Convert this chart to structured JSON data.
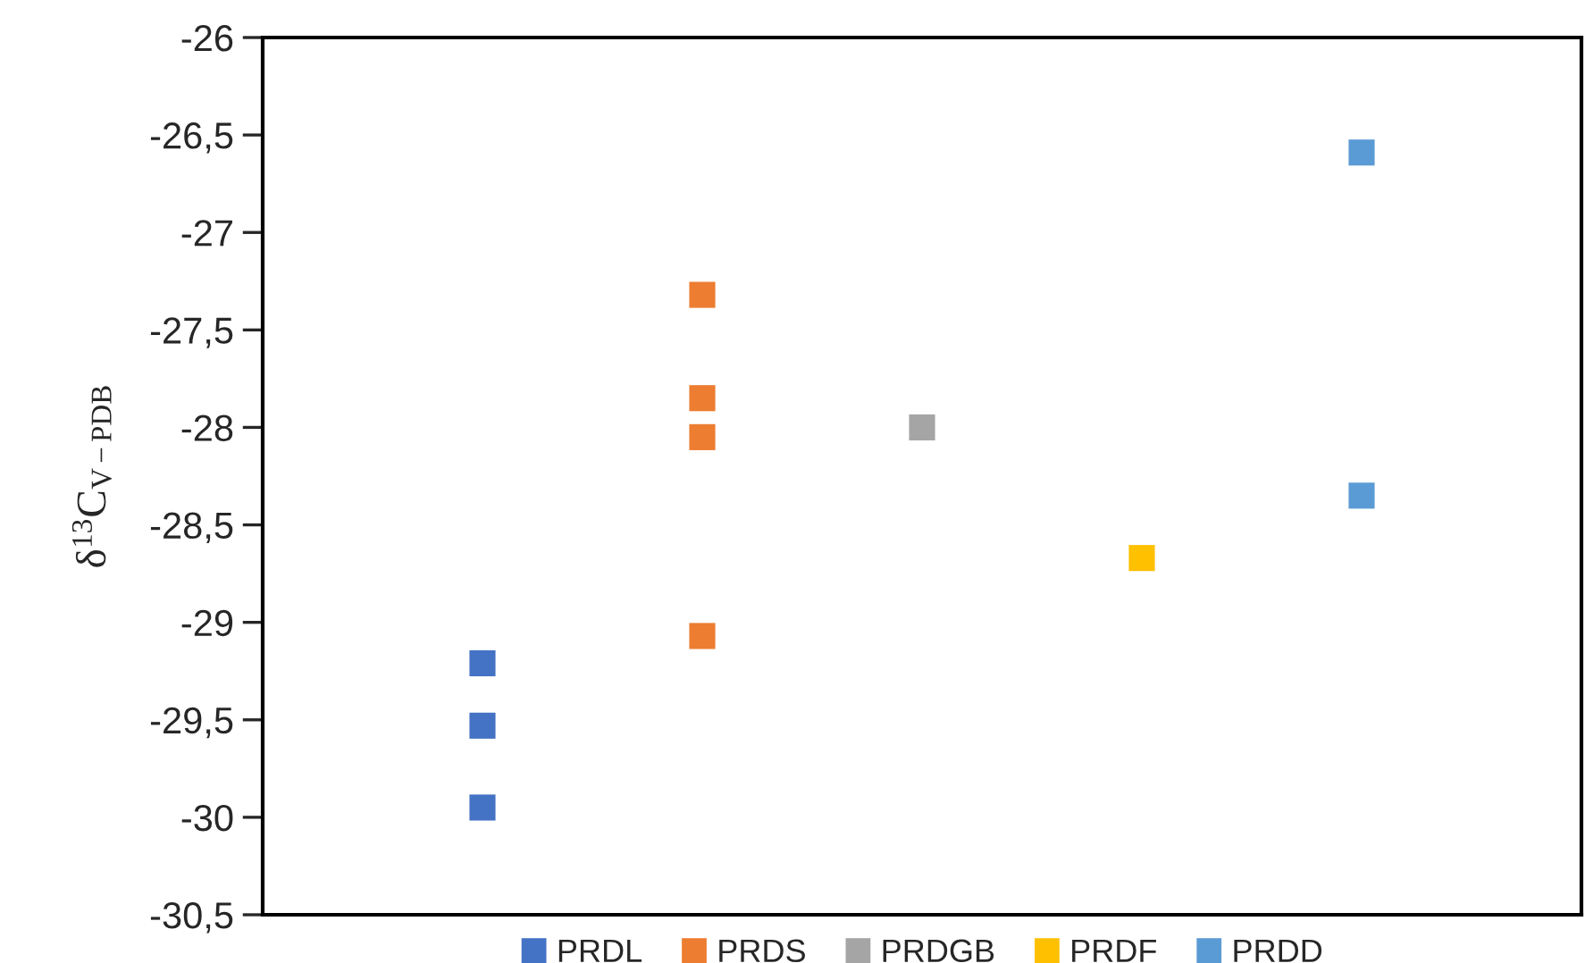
{
  "chart_data": {
    "type": "scatter",
    "ylabel": "δ$^{13}$C$_{V−PDB}$",
    "marker": "square",
    "legend": "bottom",
    "grid": false,
    "tick_labels": "y",
    "categories": [
      null,
      null,
      null,
      null,
      null
    ],
    "ylim": [
      -30.5,
      -26
    ],
    "yticks": [
      -26,
      {
        "value": -26.5,
        "label": "-26,5"
      },
      -27,
      {
        "value": -27.5,
        "label": "-27,5"
      },
      -28,
      {
        "value": -28.5,
        "label": "-28,5"
      },
      -29,
      {
        "value": -29.5,
        "label": "-29,5"
      },
      -30,
      {
        "value": -30.5,
        "label": "-30,5"
      }
    ],
    "series": [
      {
        "name": "PRDL",
        "color": "#4472c4",
        "values": [
          -29.21,
          null,
          null,
          null,
          null
        ]
      },
      {
        "name": "PRDS",
        "color": "#ed7d31",
        "values": [
          null,
          -27.32,
          null,
          null,
          null
        ]
      },
      {
        "name": "PRDGB",
        "color": "#a5a5a5",
        "values": [
          null,
          null,
          -28.0,
          null,
          null
        ]
      },
      {
        "name": "PRDF",
        "color": "#ffc000",
        "values": [
          null,
          null,
          null,
          -28.67,
          null
        ]
      },
      {
        "name": "PRDD",
        "color": "#5b9bd5",
        "values": [
          null,
          null,
          null,
          null,
          -26.59
        ]
      },
      {
        "color": "#4472c4",
        "values": [
          -29.53,
          null,
          null,
          null,
          null
        ]
      },
      {
        "color": "#4472c4",
        "values": [
          -29.95,
          null,
          null,
          null,
          null
        ]
      },
      {
        "color": "#ed7d31",
        "values": [
          null,
          -27.85,
          null,
          null,
          null
        ]
      },
      {
        "color": "#ed7d31",
        "values": [
          null,
          -28.05,
          null,
          null,
          null
        ]
      },
      {
        "color": "#ed7d31",
        "values": [
          null,
          -29.07,
          null,
          null,
          null
        ]
      },
      {
        "color": "#5b9bd5",
        "values": [
          null,
          null,
          null,
          null,
          -28.35
        ]
      }
    ]
  }
}
